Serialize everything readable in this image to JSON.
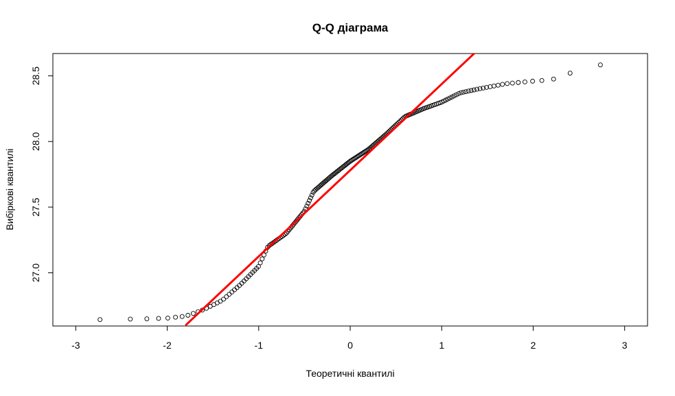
{
  "chart_data": {
    "type": "scatter",
    "title": "Q-Q діаграма",
    "xlabel": "Теоретичні квантилі",
    "ylabel": "Вибіркові квантилі",
    "xlim": [
      -3.25,
      3.25
    ],
    "ylim": [
      26.595,
      28.67
    ],
    "x_ticks": [
      -3,
      -2,
      -1,
      0,
      1,
      2,
      3
    ],
    "x_tick_labels": [
      "-3",
      "-2",
      "-1",
      "0",
      "1",
      "2",
      "3"
    ],
    "y_ticks": [
      27.0,
      27.5,
      28.0,
      28.5
    ],
    "y_tick_labels": [
      "27.0",
      "27.5",
      "28.0",
      "28.5"
    ],
    "grid": false,
    "reference_line": {
      "color": "#ff0000",
      "points": [
        [
          -1.8,
          26.6
        ],
        [
          1.4,
          28.7
        ]
      ]
    },
    "control_points": [
      [
        -3.0,
        26.64
      ],
      [
        -2.65,
        26.645
      ],
      [
        -2.2,
        26.65
      ],
      [
        -2.0,
        26.655
      ],
      [
        -1.8,
        26.67
      ],
      [
        -1.6,
        26.72
      ],
      [
        -1.4,
        26.79
      ],
      [
        -1.2,
        26.91
      ],
      [
        -1.0,
        27.05
      ],
      [
        -0.9,
        27.2
      ],
      [
        -0.7,
        27.3
      ],
      [
        -0.5,
        27.47
      ],
      [
        -0.4,
        27.62
      ],
      [
        -0.2,
        27.74
      ],
      [
        0.0,
        27.85
      ],
      [
        0.2,
        27.94
      ],
      [
        0.4,
        28.06
      ],
      [
        0.6,
        28.19
      ],
      [
        0.8,
        28.25
      ],
      [
        1.0,
        28.3
      ],
      [
        1.2,
        28.37
      ],
      [
        1.4,
        28.4
      ],
      [
        1.7,
        28.44
      ],
      [
        2.0,
        28.46
      ],
      [
        2.2,
        28.47
      ],
      [
        2.4,
        28.52
      ],
      [
        2.65,
        28.58
      ],
      [
        3.0,
        28.595
      ]
    ],
    "point_count": 200,
    "point_color": "#000000"
  }
}
